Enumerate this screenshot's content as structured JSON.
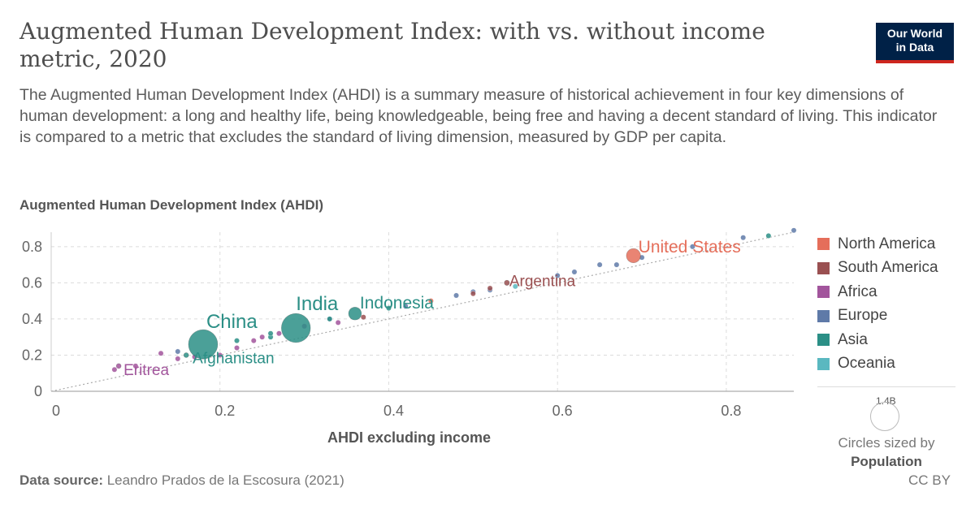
{
  "header": {
    "title": "Augmented Human Development Index: with vs. without income metric, 2020",
    "subtitle": "The Augmented Human Development Index (AHDI) is a summary measure of historical achievement in four key dimensions of human development: a long and healthy life, being knowledgeable, being free and having a decent standard of living. This indicator is compared to a metric that excludes the standard of living dimension, measured by GDP per capita.",
    "logo_line1": "Our World",
    "logo_line2": "in Data"
  },
  "footer": {
    "source_label": "Data source:",
    "source_text": "Leandro Prados de la Escosura (2021)",
    "license": "CC BY"
  },
  "size_legend": {
    "value": "1.4B",
    "label": "Circles sized by",
    "variable": "Population"
  },
  "colors": {
    "North America": "#e56e5a",
    "South America": "#9a5051",
    "Africa": "#a2559c",
    "Europe": "#5f7aa8",
    "Asia": "#2b8f86",
    "Oceania": "#5ab8c0"
  },
  "chart_data": {
    "type": "scatter",
    "xlabel": "AHDI excluding income",
    "ylabel": "Augmented Human Development Index (AHDI)",
    "xlim": [
      0,
      0.88
    ],
    "ylim": [
      0,
      0.88
    ],
    "xticks": [
      "0",
      "0.2",
      "0.4",
      "0.6",
      "0.8"
    ],
    "yticks": [
      "0",
      "0.2",
      "0.4",
      "0.6",
      "0.8"
    ],
    "xtick_values": [
      0,
      0.2,
      0.4,
      0.6,
      0.8
    ],
    "ytick_values": [
      0,
      0.2,
      0.4,
      0.6,
      0.8
    ],
    "grid": true,
    "diagonal_line": true,
    "legend": [
      "North America",
      "South America",
      "Africa",
      "Europe",
      "Asia",
      "Oceania"
    ],
    "legend_position": "right",
    "labeled_points": [
      {
        "label": "United States",
        "region": "North America",
        "x": 0.69,
        "y": 0.75,
        "pop": 0.33
      },
      {
        "label": "Argentina",
        "region": "South America",
        "x": 0.54,
        "y": 0.6,
        "pop": 0.045
      },
      {
        "label": "Indonesia",
        "region": "Asia",
        "x": 0.36,
        "y": 0.43,
        "pop": 0.27
      },
      {
        "label": "India",
        "region": "Asia",
        "x": 0.29,
        "y": 0.35,
        "pop": 1.38
      },
      {
        "label": "China",
        "region": "Asia",
        "x": 0.18,
        "y": 0.26,
        "pop": 1.4
      },
      {
        "label": "Afghanistan",
        "region": "Asia",
        "x": 0.16,
        "y": 0.2,
        "pop": 0.039
      },
      {
        "label": "Eritrea",
        "region": "Africa",
        "x": 0.08,
        "y": 0.14,
        "pop": 0.004
      }
    ],
    "points": [
      {
        "region": "Africa",
        "x": 0.075,
        "y": 0.12
      },
      {
        "region": "Africa",
        "x": 0.1,
        "y": 0.14
      },
      {
        "region": "Africa",
        "x": 0.13,
        "y": 0.21
      },
      {
        "region": "Africa",
        "x": 0.15,
        "y": 0.18
      },
      {
        "region": "Africa",
        "x": 0.17,
        "y": 0.19
      },
      {
        "region": "Africa",
        "x": 0.2,
        "y": 0.2
      },
      {
        "region": "Africa",
        "x": 0.22,
        "y": 0.24
      },
      {
        "region": "Africa",
        "x": 0.24,
        "y": 0.28
      },
      {
        "region": "Africa",
        "x": 0.25,
        "y": 0.3
      },
      {
        "region": "Africa",
        "x": 0.27,
        "y": 0.32
      },
      {
        "region": "Africa",
        "x": 0.3,
        "y": 0.36
      },
      {
        "region": "Africa",
        "x": 0.34,
        "y": 0.38
      },
      {
        "region": "Europe",
        "x": 0.15,
        "y": 0.22
      },
      {
        "region": "Europe",
        "x": 0.33,
        "y": 0.4
      },
      {
        "region": "Europe",
        "x": 0.42,
        "y": 0.47
      },
      {
        "region": "Europe",
        "x": 0.48,
        "y": 0.53
      },
      {
        "region": "Europe",
        "x": 0.5,
        "y": 0.55
      },
      {
        "region": "Europe",
        "x": 0.52,
        "y": 0.56
      },
      {
        "region": "Europe",
        "x": 0.6,
        "y": 0.64
      },
      {
        "region": "Europe",
        "x": 0.62,
        "y": 0.66
      },
      {
        "region": "Europe",
        "x": 0.65,
        "y": 0.7
      },
      {
        "region": "Europe",
        "x": 0.67,
        "y": 0.7
      },
      {
        "region": "Europe",
        "x": 0.7,
        "y": 0.74
      },
      {
        "region": "Europe",
        "x": 0.76,
        "y": 0.8
      },
      {
        "region": "Europe",
        "x": 0.82,
        "y": 0.85
      },
      {
        "region": "Europe",
        "x": 0.88,
        "y": 0.89
      },
      {
        "region": "Asia",
        "x": 0.26,
        "y": 0.3
      },
      {
        "region": "Asia",
        "x": 0.26,
        "y": 0.32
      },
      {
        "region": "Asia",
        "x": 0.33,
        "y": 0.4
      },
      {
        "region": "Asia",
        "x": 0.4,
        "y": 0.46
      },
      {
        "region": "Asia",
        "x": 0.85,
        "y": 0.86
      },
      {
        "region": "Asia",
        "x": 0.22,
        "y": 0.28
      },
      {
        "region": "South America",
        "x": 0.37,
        "y": 0.41
      },
      {
        "region": "South America",
        "x": 0.5,
        "y": 0.54
      },
      {
        "region": "South America",
        "x": 0.52,
        "y": 0.57
      },
      {
        "region": "North America",
        "x": 0.45,
        "y": 0.5
      },
      {
        "region": "Oceania",
        "x": 0.55,
        "y": 0.58
      }
    ]
  }
}
